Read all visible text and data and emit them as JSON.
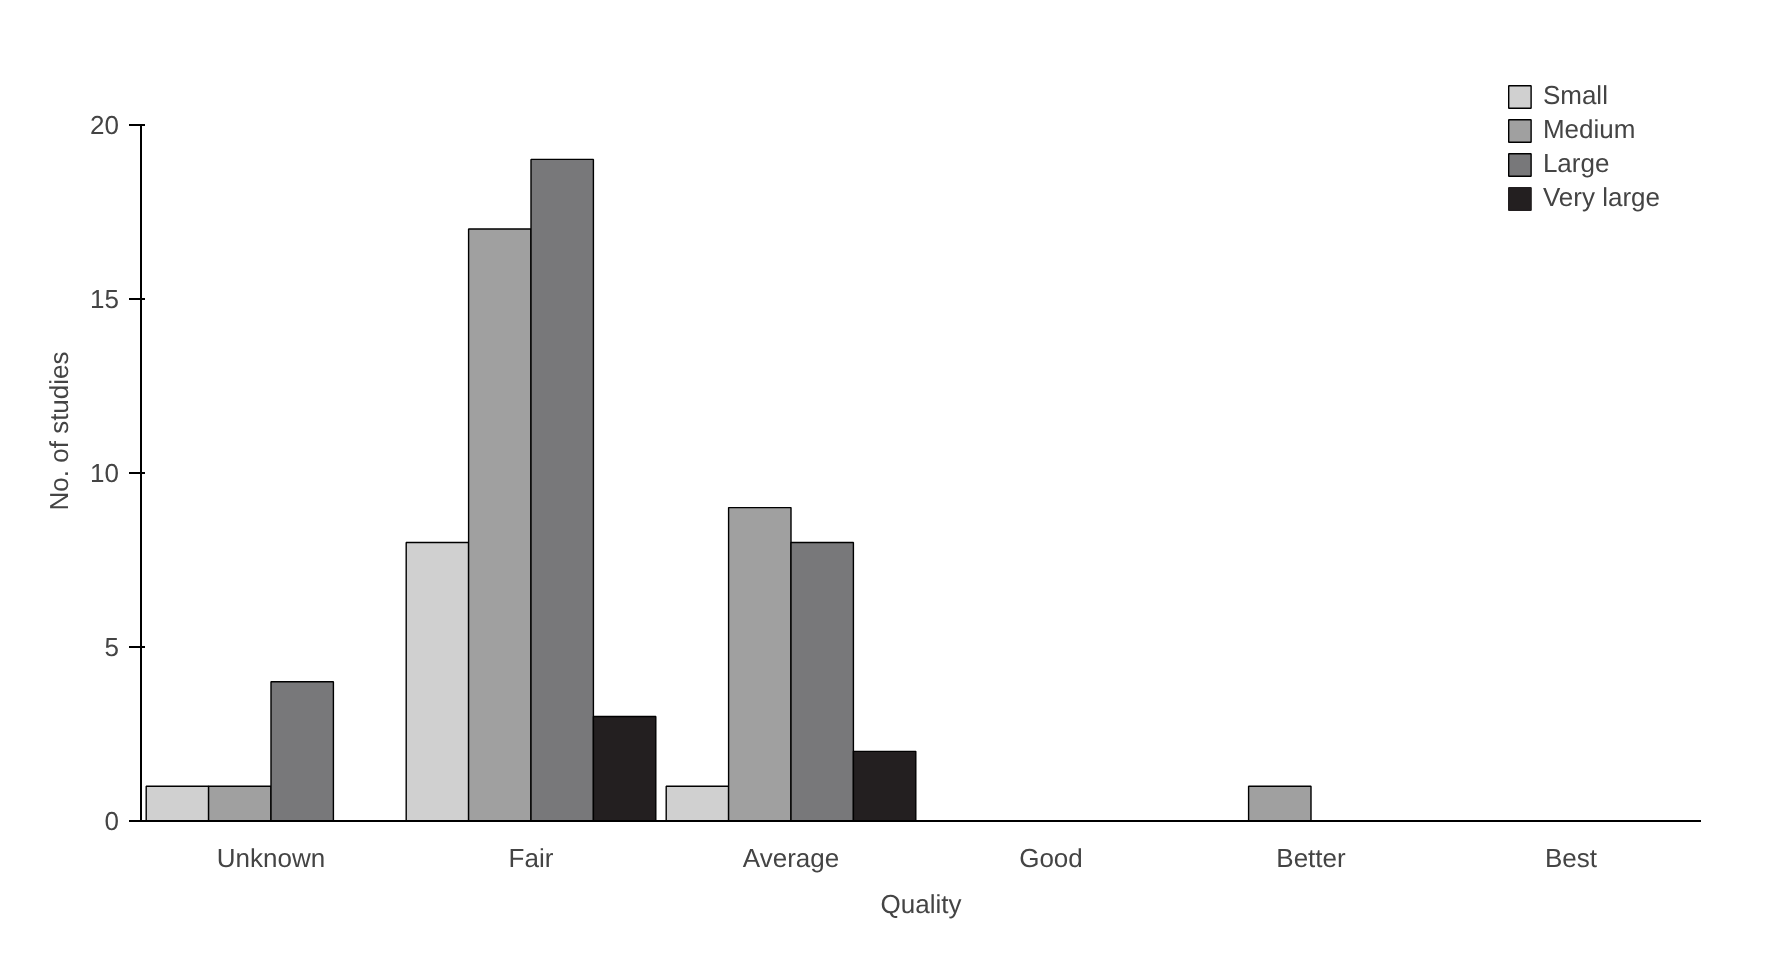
{
  "chart_data": {
    "type": "bar",
    "xlabel": "Quality",
    "ylabel": "No. of studies",
    "categories": [
      "Unknown",
      "Fair",
      "Average",
      "Good",
      "Better",
      "Best"
    ],
    "series": [
      {
        "name": "Small",
        "color": "#d0d0d0",
        "values": [
          1,
          8,
          1,
          0,
          0,
          0
        ]
      },
      {
        "name": "Medium",
        "color": "#a0a0a0",
        "values": [
          1,
          17,
          9,
          0,
          1,
          0
        ]
      },
      {
        "name": "Large",
        "color": "#78787a",
        "values": [
          4,
          19,
          8,
          0,
          0,
          0
        ]
      },
      {
        "name": "Very large",
        "color": "#231f20",
        "values": [
          0,
          3,
          2,
          0,
          0,
          0
        ]
      }
    ],
    "ylim": [
      0,
      20
    ],
    "yticks": [
      0,
      5,
      10,
      15,
      20
    ],
    "grid": false,
    "legend": "top right"
  }
}
